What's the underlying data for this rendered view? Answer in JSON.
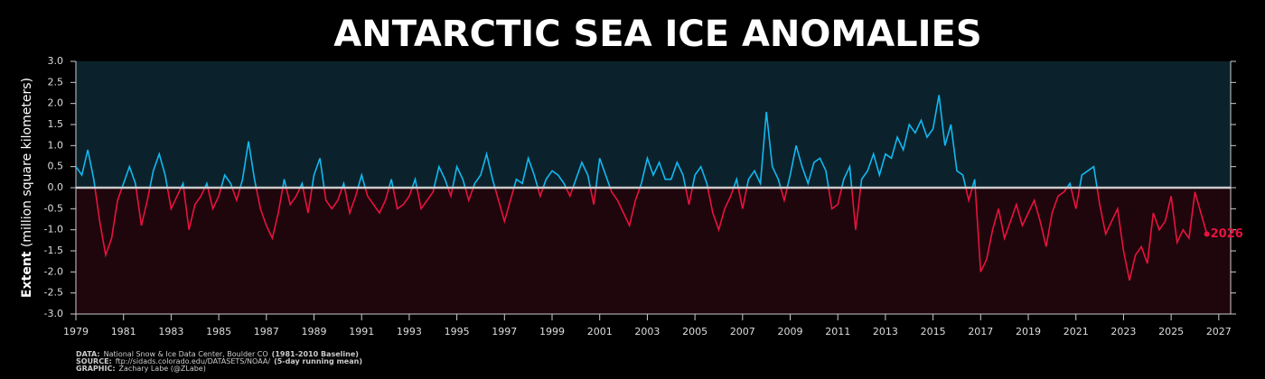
{
  "chart_data": {
    "type": "line",
    "title": "ANTARCTIC SEA ICE ANOMALIES",
    "ylabel_bold": "Extent",
    "ylabel": "(million square kilometers)",
    "annotation": "2026",
    "footer": [
      {
        "label": "DATA:",
        "text": "National Snow & Ice Data Center, Boulder CO",
        "note": "(1981-2010 Baseline)"
      },
      {
        "label": "SOURCE:",
        "text": "ftp://sidads.colorado.edu/DATASETS/NOAA/",
        "note": "(5-day running mean)"
      },
      {
        "label": "GRAPHIC:",
        "text": "Zachary Labe (@ZLabe)"
      }
    ],
    "positive_color": "#12b8f0",
    "negative_color": "#e8123f",
    "xlim": [
      1979,
      2027.5
    ],
    "ylim": [
      -3,
      3
    ],
    "xticks": [
      1979,
      1981,
      1983,
      1985,
      1987,
      1989,
      1991,
      1993,
      1995,
      1997,
      1999,
      2001,
      2003,
      2005,
      2007,
      2009,
      2011,
      2013,
      2015,
      2017,
      2019,
      2021,
      2023,
      2025,
      2027
    ],
    "yticks": [
      {
        "value": 3,
        "label": "3.0"
      },
      2.5,
      {
        "value": 2,
        "label": "2.0"
      },
      1.5,
      {
        "value": 1,
        "label": "1.0"
      },
      0.5,
      {
        "value": 0,
        "label": "0.0"
      },
      -0.5,
      {
        "value": -1,
        "label": "-1.0"
      },
      -1.5,
      {
        "value": -2,
        "label": "-2.0"
      },
      -2.5,
      {
        "value": -3,
        "label": "-3.0"
      }
    ],
    "x": [
      1979,
      1979.25,
      1979.5,
      1979.75,
      1980,
      1980.25,
      1980.5,
      1980.75,
      1981,
      1981.25,
      1981.5,
      1981.75,
      1982,
      1982.25,
      1982.5,
      1982.75,
      1983,
      1983.25,
      1983.5,
      1983.75,
      1984,
      1984.25,
      1984.5,
      1984.75,
      1985,
      1985.25,
      1985.5,
      1985.75,
      1986,
      1986.25,
      1986.5,
      1986.75,
      1987,
      1987.25,
      1987.5,
      1987.75,
      1988,
      1988.25,
      1988.5,
      1988.75,
      1989,
      1989.25,
      1989.5,
      1989.75,
      1990,
      1990.25,
      1990.5,
      1990.75,
      1991,
      1991.25,
      1991.5,
      1991.75,
      1992,
      1992.25,
      1992.5,
      1992.75,
      1993,
      1993.25,
      1993.5,
      1993.75,
      1994,
      1994.25,
      1994.5,
      1994.75,
      1995,
      1995.25,
      1995.5,
      1995.75,
      1996,
      1996.25,
      1996.5,
      1996.75,
      1997,
      1997.25,
      1997.5,
      1997.75,
      1998,
      1998.25,
      1998.5,
      1998.75,
      1999,
      1999.25,
      1999.5,
      1999.75,
      2000,
      2000.25,
      2000.5,
      2000.75,
      2001,
      2001.25,
      2001.5,
      2001.75,
      2002,
      2002.25,
      2002.5,
      2002.75,
      2003,
      2003.25,
      2003.5,
      2003.75,
      2004,
      2004.25,
      2004.5,
      2004.75,
      2005,
      2005.25,
      2005.5,
      2005.75,
      2006,
      2006.25,
      2006.5,
      2006.75,
      2007,
      2007.25,
      2007.5,
      2007.75,
      2008,
      2008.25,
      2008.5,
      2008.75,
      2009,
      2009.25,
      2009.5,
      2009.75,
      2010,
      2010.25,
      2010.5,
      2010.75,
      2011,
      2011.25,
      2011.5,
      2011.75,
      2012,
      2012.25,
      2012.5,
      2012.75,
      2013,
      2013.25,
      2013.5,
      2013.75,
      2014,
      2014.25,
      2014.5,
      2014.75,
      2015,
      2015.25,
      2015.5,
      2015.75,
      2016,
      2016.25,
      2016.5,
      2016.75,
      2017,
      2017.25,
      2017.5,
      2017.75,
      2018,
      2018.25,
      2018.5,
      2018.75,
      2019,
      2019.25,
      2019.5,
      2019.75,
      2020,
      2020.25,
      2020.5,
      2020.75,
      2021,
      2021.25,
      2021.5,
      2021.75,
      2022,
      2022.25,
      2022.5,
      2022.75,
      2023,
      2023.25,
      2023.5,
      2023.75,
      2024,
      2024.25,
      2024.5,
      2024.75,
      2025,
      2025.25,
      2025.5,
      2025.75,
      2026,
      2026.25,
      2026.5
    ],
    "values": [
      0.5,
      0.3,
      0.9,
      0.2,
      -0.8,
      -1.6,
      -1.2,
      -0.3,
      0.1,
      0.5,
      0.1,
      -0.9,
      -0.3,
      0.4,
      0.8,
      0.3,
      -0.5,
      -0.2,
      0.1,
      -1.0,
      -0.4,
      -0.2,
      0.1,
      -0.5,
      -0.2,
      0.3,
      0.1,
      -0.3,
      0.2,
      1.1,
      0.2,
      -0.5,
      -0.9,
      -1.2,
      -0.6,
      0.2,
      -0.4,
      -0.2,
      0.1,
      -0.6,
      0.3,
      0.7,
      -0.3,
      -0.5,
      -0.3,
      0.1,
      -0.6,
      -0.2,
      0.3,
      -0.2,
      -0.4,
      -0.6,
      -0.3,
      0.2,
      -0.5,
      -0.4,
      -0.2,
      0.2,
      -0.5,
      -0.3,
      -0.1,
      0.5,
      0.2,
      -0.2,
      0.5,
      0.2,
      -0.3,
      0.1,
      0.3,
      0.8,
      0.2,
      -0.3,
      -0.8,
      -0.3,
      0.2,
      0.1,
      0.7,
      0.3,
      -0.2,
      0.2,
      0.4,
      0.3,
      0.1,
      -0.2,
      0.2,
      0.6,
      0.3,
      -0.4,
      0.7,
      0.3,
      -0.1,
      -0.3,
      -0.6,
      -0.9,
      -0.3,
      0.1,
      0.7,
      0.3,
      0.6,
      0.2,
      0.2,
      0.6,
      0.3,
      -0.4,
      0.3,
      0.5,
      0.1,
      -0.6,
      -1.0,
      -0.5,
      -0.2,
      0.2,
      -0.5,
      0.2,
      0.4,
      0.1,
      1.8,
      0.5,
      0.2,
      -0.3,
      0.3,
      1.0,
      0.5,
      0.1,
      0.6,
      0.7,
      0.4,
      -0.5,
      -0.4,
      0.2,
      0.5,
      -1.0,
      0.2,
      0.4,
      0.8,
      0.3,
      0.8,
      0.7,
      1.2,
      0.9,
      1.5,
      1.3,
      1.6,
      1.2,
      1.4,
      2.2,
      1.0,
      1.5,
      0.4,
      0.3,
      -0.3,
      0.2,
      -2.0,
      -1.7,
      -1.0,
      -0.5,
      -1.2,
      -0.8,
      -0.4,
      -0.9,
      -0.6,
      -0.3,
      -0.8,
      -1.4,
      -0.6,
      -0.2,
      -0.1,
      0.1,
      -0.5,
      0.3,
      0.4,
      0.5,
      -0.4,
      -1.1,
      -0.8,
      -0.5,
      -1.5,
      -2.2,
      -1.6,
      -1.4,
      -1.8,
      -0.6,
      -1.0,
      -0.8,
      -0.2,
      -1.3,
      -1.0,
      -1.2,
      -0.1,
      -0.6,
      -1.1
    ]
  }
}
